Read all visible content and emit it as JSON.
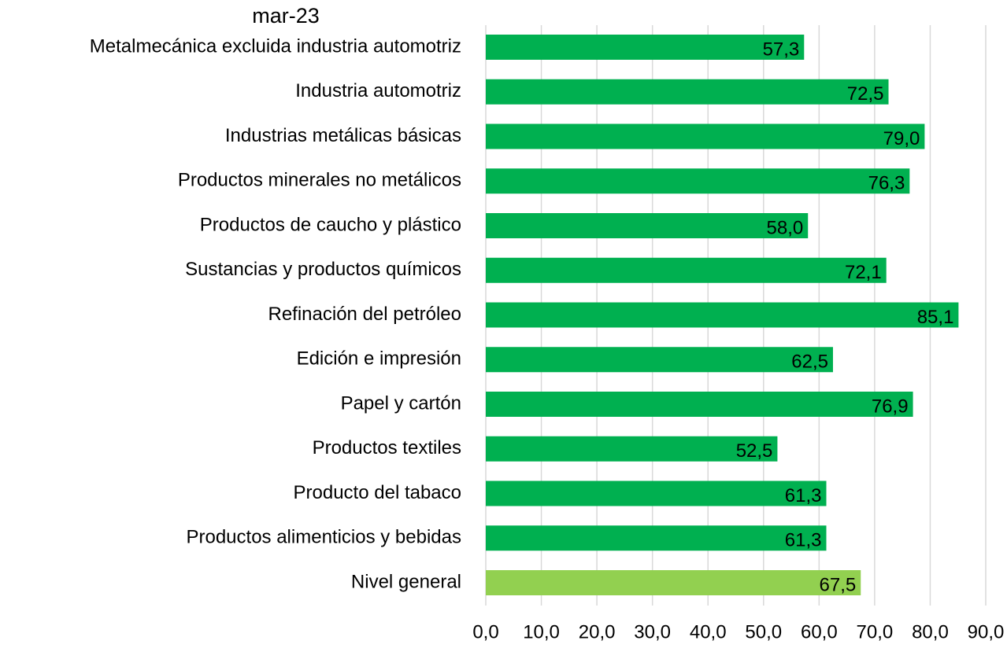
{
  "chart_data": {
    "type": "barh",
    "title": "mar-23",
    "categories": [
      "Metalmecánica excluida industria automotriz",
      "Industria automotriz",
      "Industrias metálicas básicas",
      "Productos minerales no metálicos",
      "Productos de caucho y plástico",
      "Sustancias y productos químicos",
      "Refinación del petróleo",
      "Edición e impresión",
      "Papel y cartón",
      "Productos textiles",
      "Producto del tabaco",
      "Productos alimenticios y bebidas",
      "Nivel general"
    ],
    "values": [
      57.3,
      72.5,
      79.0,
      76.3,
      58.0,
      72.1,
      85.1,
      62.5,
      76.9,
      52.5,
      61.3,
      61.3,
      67.5
    ],
    "value_labels": [
      "57,3",
      "72,5",
      "79,0",
      "76,3",
      "58,0",
      "72,1",
      "85,1",
      "62,5",
      "76,9",
      "52,5",
      "61,3",
      "61,3",
      "67,5"
    ],
    "colors": [
      "#00b050",
      "#00b050",
      "#00b050",
      "#00b050",
      "#00b050",
      "#00b050",
      "#00b050",
      "#00b050",
      "#00b050",
      "#00b050",
      "#00b050",
      "#00b050",
      "#92d050"
    ],
    "xlim": [
      0,
      90
    ],
    "xticks": [
      {
        "value": 0,
        "label": "0,0"
      },
      {
        "value": 10,
        "label": "10,0"
      },
      {
        "value": 20,
        "label": "20,0"
      },
      {
        "value": 30,
        "label": "30,0"
      },
      {
        "value": 40,
        "label": "40,0"
      },
      {
        "value": 50,
        "label": "50,0"
      },
      {
        "value": 60,
        "label": "60,0"
      },
      {
        "value": 70,
        "label": "70,0"
      },
      {
        "value": 80,
        "label": "80,0"
      },
      {
        "value": 90,
        "label": "90,0"
      }
    ],
    "grid": true
  }
}
